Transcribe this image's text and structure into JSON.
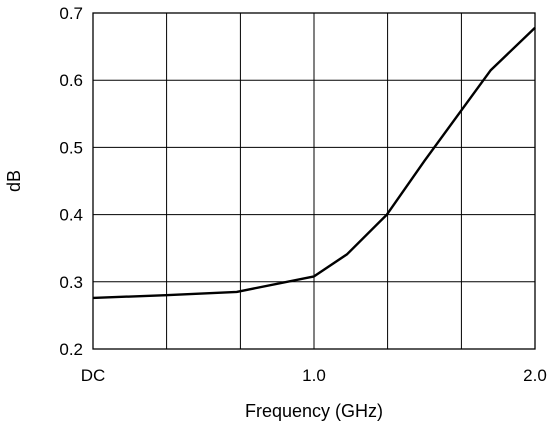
{
  "chart_data": {
    "type": "line",
    "title": "",
    "xlabel": "Frequency (GHz)",
    "ylabel": "dB",
    "xlim": [
      0,
      2
    ],
    "ylim": [
      0.2,
      0.7
    ],
    "x_ticks": [
      {
        "value": 0,
        "label": "DC"
      },
      {
        "value": 1,
        "label": "1.0"
      },
      {
        "value": 2,
        "label": "2.0"
      }
    ],
    "y_ticks": [
      {
        "value": 0.2,
        "label": "0.2"
      },
      {
        "value": 0.3,
        "label": "0.3"
      },
      {
        "value": 0.4,
        "label": "0.4"
      },
      {
        "value": 0.5,
        "label": "0.5"
      },
      {
        "value": 0.6,
        "label": "0.6"
      },
      {
        "value": 0.7,
        "label": "0.7"
      }
    ],
    "x_gridlines": [
      0,
      0.333,
      0.667,
      1.0,
      1.333,
      1.667,
      2.0
    ],
    "y_gridlines": [
      0.2,
      0.3,
      0.4,
      0.5,
      0.6,
      0.7
    ],
    "grid": true,
    "series": [
      {
        "color": "#000000",
        "x": [
          0,
          0.33,
          0.65,
          1.0,
          1.15,
          1.33,
          1.5,
          1.8,
          2.0
        ],
        "y": [
          0.276,
          0.28,
          0.285,
          0.308,
          0.341,
          0.4,
          0.48,
          0.615,
          0.678
        ]
      }
    ]
  }
}
